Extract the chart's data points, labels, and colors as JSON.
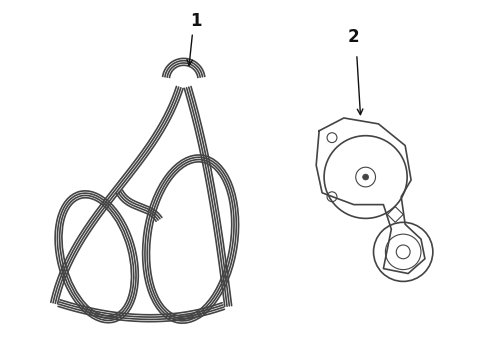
{
  "bg_color": "#ffffff",
  "line_color": "#444444",
  "figsize": [
    4.9,
    3.6
  ],
  "dpi": 100,
  "label1_text": "1",
  "label2_text": "2"
}
